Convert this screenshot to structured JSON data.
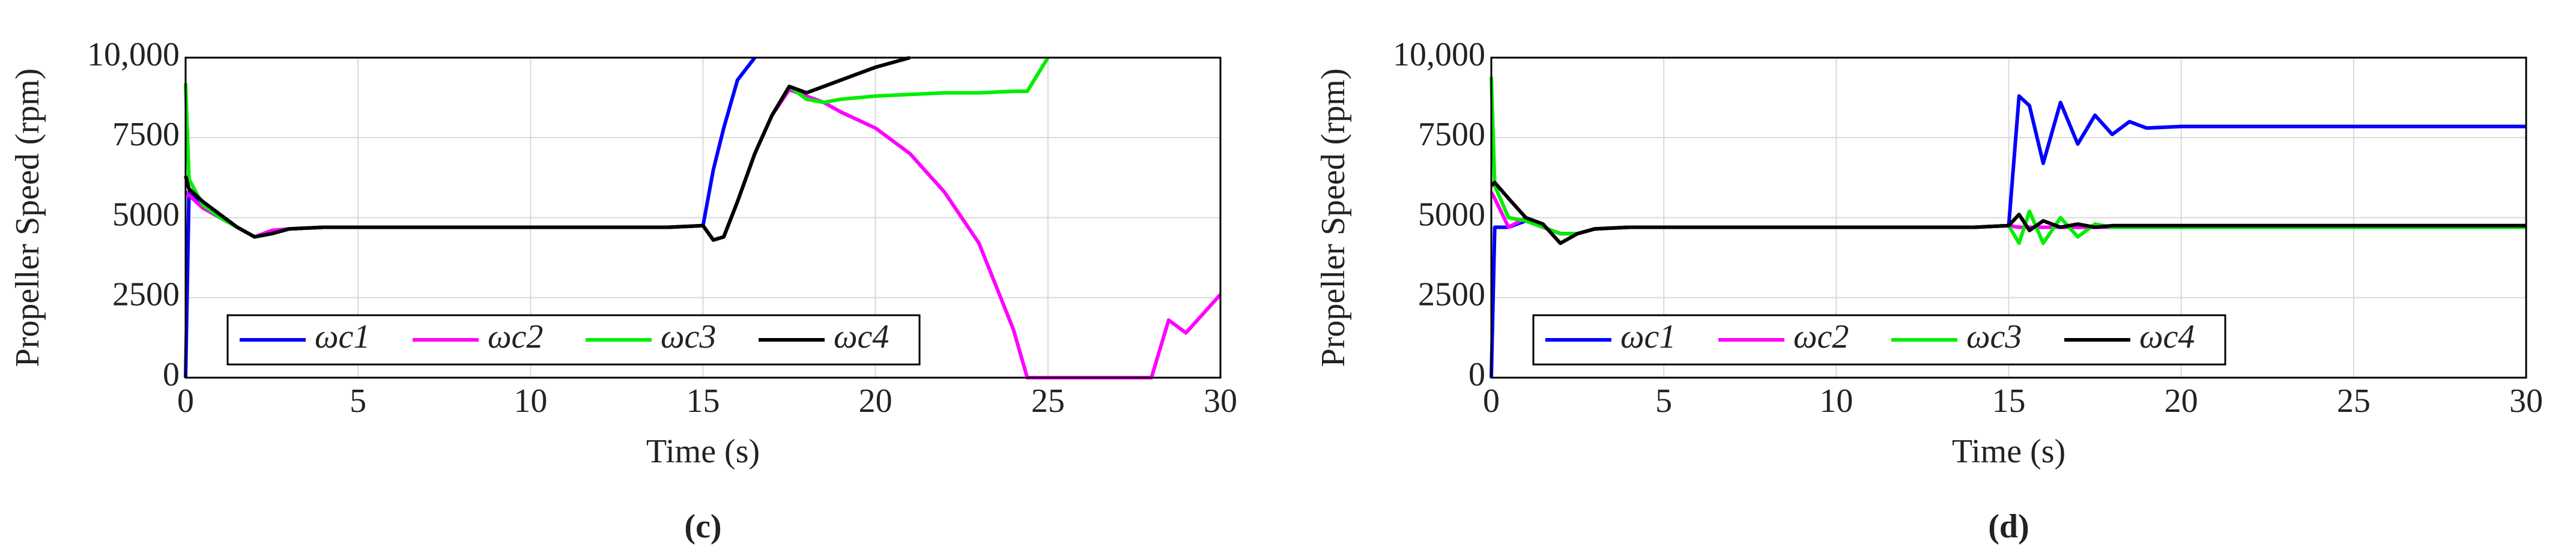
{
  "chart_data": [
    {
      "type": "line",
      "caption": "(c)",
      "xlabel": "Time (s)",
      "ylabel": "Propeller Speed (rpm)",
      "x": [
        0,
        0.1,
        0.5,
        1,
        1.5,
        2,
        2.5,
        3,
        4,
        5,
        6,
        7,
        8,
        9,
        10,
        11,
        12,
        13,
        14,
        15,
        15.3,
        15.6,
        16,
        16.5,
        17,
        17.5,
        18,
        18.5,
        19,
        20,
        21,
        22,
        23,
        24,
        24.4,
        25,
        26,
        27,
        28,
        28.5,
        29,
        30
      ],
      "xlim": [
        0,
        30
      ],
      "ylim": [
        0,
        10000
      ],
      "xticks": [
        0,
        5,
        10,
        15,
        20,
        25,
        30
      ],
      "yticks": [
        0,
        2500,
        5000,
        7500,
        {
          "value": 10000,
          "label": "10,000"
        }
      ],
      "grid": true,
      "legend": "lower left",
      "series": [
        {
          "name": "ωc1",
          "color": "#0000ff",
          "values": [
            0,
            5800,
            5400,
            5000,
            4700,
            4400,
            4500,
            4650,
            4700,
            4700,
            4700,
            4700,
            4700,
            4700,
            4700,
            4700,
            4700,
            4700,
            4700,
            4750,
            6500,
            7800,
            9300,
            10000,
            null,
            null,
            null,
            null,
            null,
            null,
            null,
            null,
            null,
            null,
            null,
            null,
            null,
            null,
            null,
            null,
            null,
            null
          ]
        },
        {
          "name": "ωc2",
          "color": "#ff00ff",
          "values": [
            5800,
            5700,
            5300,
            5000,
            4700,
            4400,
            4600,
            4650,
            4700,
            4700,
            4700,
            4700,
            4700,
            4700,
            4700,
            4700,
            4700,
            4700,
            4700,
            4750,
            4300,
            4400,
            5500,
            7000,
            8200,
            9000,
            8800,
            8600,
            8300,
            7800,
            7000,
            5800,
            4200,
            1500,
            0,
            0,
            0,
            0,
            0,
            1800,
            1400,
            2600
          ]
        },
        {
          "name": "ωc3",
          "color": "#00ee00",
          "values": [
            9200,
            6200,
            5400,
            5000,
            4700,
            4400,
            4500,
            4650,
            4700,
            4700,
            4700,
            4700,
            4700,
            4700,
            4700,
            4700,
            4700,
            4700,
            4700,
            4750,
            4300,
            4400,
            5500,
            7000,
            8200,
            9100,
            8700,
            8600,
            8700,
            8800,
            8850,
            8900,
            8900,
            8950,
            8950,
            10000,
            null,
            null,
            null,
            null,
            null,
            null
          ]
        },
        {
          "name": "ωc4",
          "color": "#000000",
          "values": [
            6300,
            5900,
            5500,
            5100,
            4700,
            4400,
            4500,
            4650,
            4700,
            4700,
            4700,
            4700,
            4700,
            4700,
            4700,
            4700,
            4700,
            4700,
            4700,
            4750,
            4300,
            4400,
            5500,
            7000,
            8200,
            9100,
            8900,
            9100,
            9300,
            9700,
            10000,
            null,
            null,
            null,
            null,
            null,
            null,
            null,
            null,
            null,
            null,
            null
          ]
        }
      ]
    },
    {
      "type": "line",
      "caption": "(d)",
      "xlabel": "Time (s)",
      "ylabel": "Propeller Speed (rpm)",
      "x": [
        0,
        0.1,
        0.5,
        1,
        1.5,
        2,
        2.5,
        3,
        4,
        5,
        6,
        7,
        8,
        9,
        10,
        11,
        12,
        13,
        14,
        15,
        15.3,
        15.6,
        16,
        16.5,
        17,
        17.5,
        18,
        18.5,
        19,
        20,
        21,
        22,
        23,
        24,
        24.4,
        25,
        26,
        27,
        28,
        28.5,
        29,
        30
      ],
      "xlim": [
        0,
        30
      ],
      "ylim": [
        0,
        10000
      ],
      "xticks": [
        0,
        5,
        10,
        15,
        20,
        25,
        30
      ],
      "yticks": [
        0,
        2500,
        5000,
        7500,
        {
          "value": 10000,
          "label": "10,000"
        }
      ],
      "grid": true,
      "legend": "lower left",
      "series": [
        {
          "name": "ωc1",
          "color": "#0000ff",
          "values": [
            0,
            4700,
            4700,
            4900,
            4700,
            4500,
            4500,
            4650,
            4700,
            4700,
            4700,
            4700,
            4700,
            4700,
            4700,
            4700,
            4700,
            4700,
            4700,
            4750,
            8800,
            8500,
            6700,
            8600,
            7300,
            8200,
            7600,
            8000,
            7800,
            7850,
            7850,
            7850,
            7850,
            7850,
            7850,
            7850,
            7850,
            7850,
            7850,
            7850,
            7850,
            7850
          ]
        },
        {
          "name": "ωc2",
          "color": "#ff00ff",
          "values": [
            5800,
            5600,
            4700,
            5000,
            4700,
            4500,
            4500,
            4650,
            4700,
            4700,
            4700,
            4700,
            4700,
            4700,
            4700,
            4700,
            4700,
            4700,
            4700,
            4750,
            4700,
            4700,
            4700,
            4700,
            4700,
            4700,
            4700,
            4700,
            4700,
            4700,
            4700,
            4700,
            4700,
            4700,
            4700,
            4700,
            4700,
            4700,
            4700,
            4700,
            4700,
            4700
          ]
        },
        {
          "name": "ωc3",
          "color": "#00ee00",
          "values": [
            9400,
            6000,
            5000,
            4900,
            4700,
            4500,
            4500,
            4650,
            4700,
            4700,
            4700,
            4700,
            4700,
            4700,
            4700,
            4700,
            4700,
            4700,
            4700,
            4750,
            4200,
            5200,
            4200,
            5000,
            4400,
            4800,
            4700,
            4700,
            4700,
            4700,
            4700,
            4700,
            4700,
            4700,
            4700,
            4700,
            4700,
            4700,
            4700,
            4700,
            4700,
            4700
          ]
        },
        {
          "name": "ωc4",
          "color": "#000000",
          "values": [
            6000,
            6100,
            5600,
            5000,
            4800,
            4200,
            4500,
            4650,
            4700,
            4700,
            4700,
            4700,
            4700,
            4700,
            4700,
            4700,
            4700,
            4700,
            4700,
            4750,
            5100,
            4600,
            4900,
            4700,
            4800,
            4700,
            4750,
            4750,
            4750,
            4750,
            4750,
            4750,
            4750,
            4750,
            4750,
            4750,
            4750,
            4750,
            4750,
            4750,
            4750,
            4750
          ]
        }
      ]
    }
  ]
}
